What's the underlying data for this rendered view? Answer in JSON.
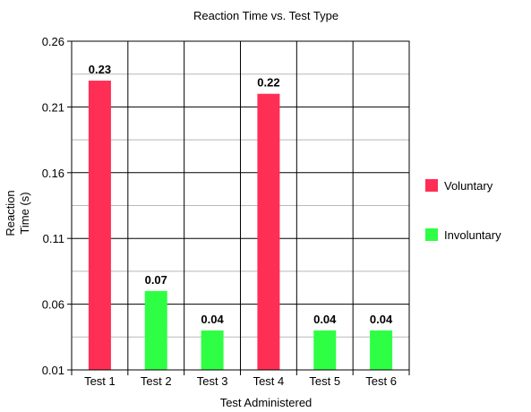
{
  "chart_data": {
    "type": "bar",
    "title": "Reaction Time vs. Test Type",
    "xlabel": "Test Administered",
    "ylabel": [
      "Reaction",
      "Time (s)"
    ],
    "categories": [
      "Test 1",
      "Test 2",
      "Test 3",
      "Test 4",
      "Test 5",
      "Test 6"
    ],
    "yticks": [
      "0.01",
      "0.06",
      "0.11",
      "0.16",
      "0.21",
      "0.26"
    ],
    "ylim": [
      0.01,
      0.26
    ],
    "grid": true,
    "legend_position": "right",
    "series": [
      {
        "name": "Voluntary",
        "color": "#ff2e55",
        "values": [
          0.23,
          null,
          null,
          0.22,
          null,
          null
        ],
        "labels": [
          "0.23",
          "",
          "",
          "0.22",
          "",
          ""
        ]
      },
      {
        "name": "Involuntary",
        "color": "#2eff44",
        "values": [
          null,
          0.07,
          0.04,
          null,
          0.04,
          0.04
        ],
        "labels": [
          "",
          "0.07",
          "0.04",
          "",
          "0.04",
          "0.04"
        ]
      }
    ]
  }
}
